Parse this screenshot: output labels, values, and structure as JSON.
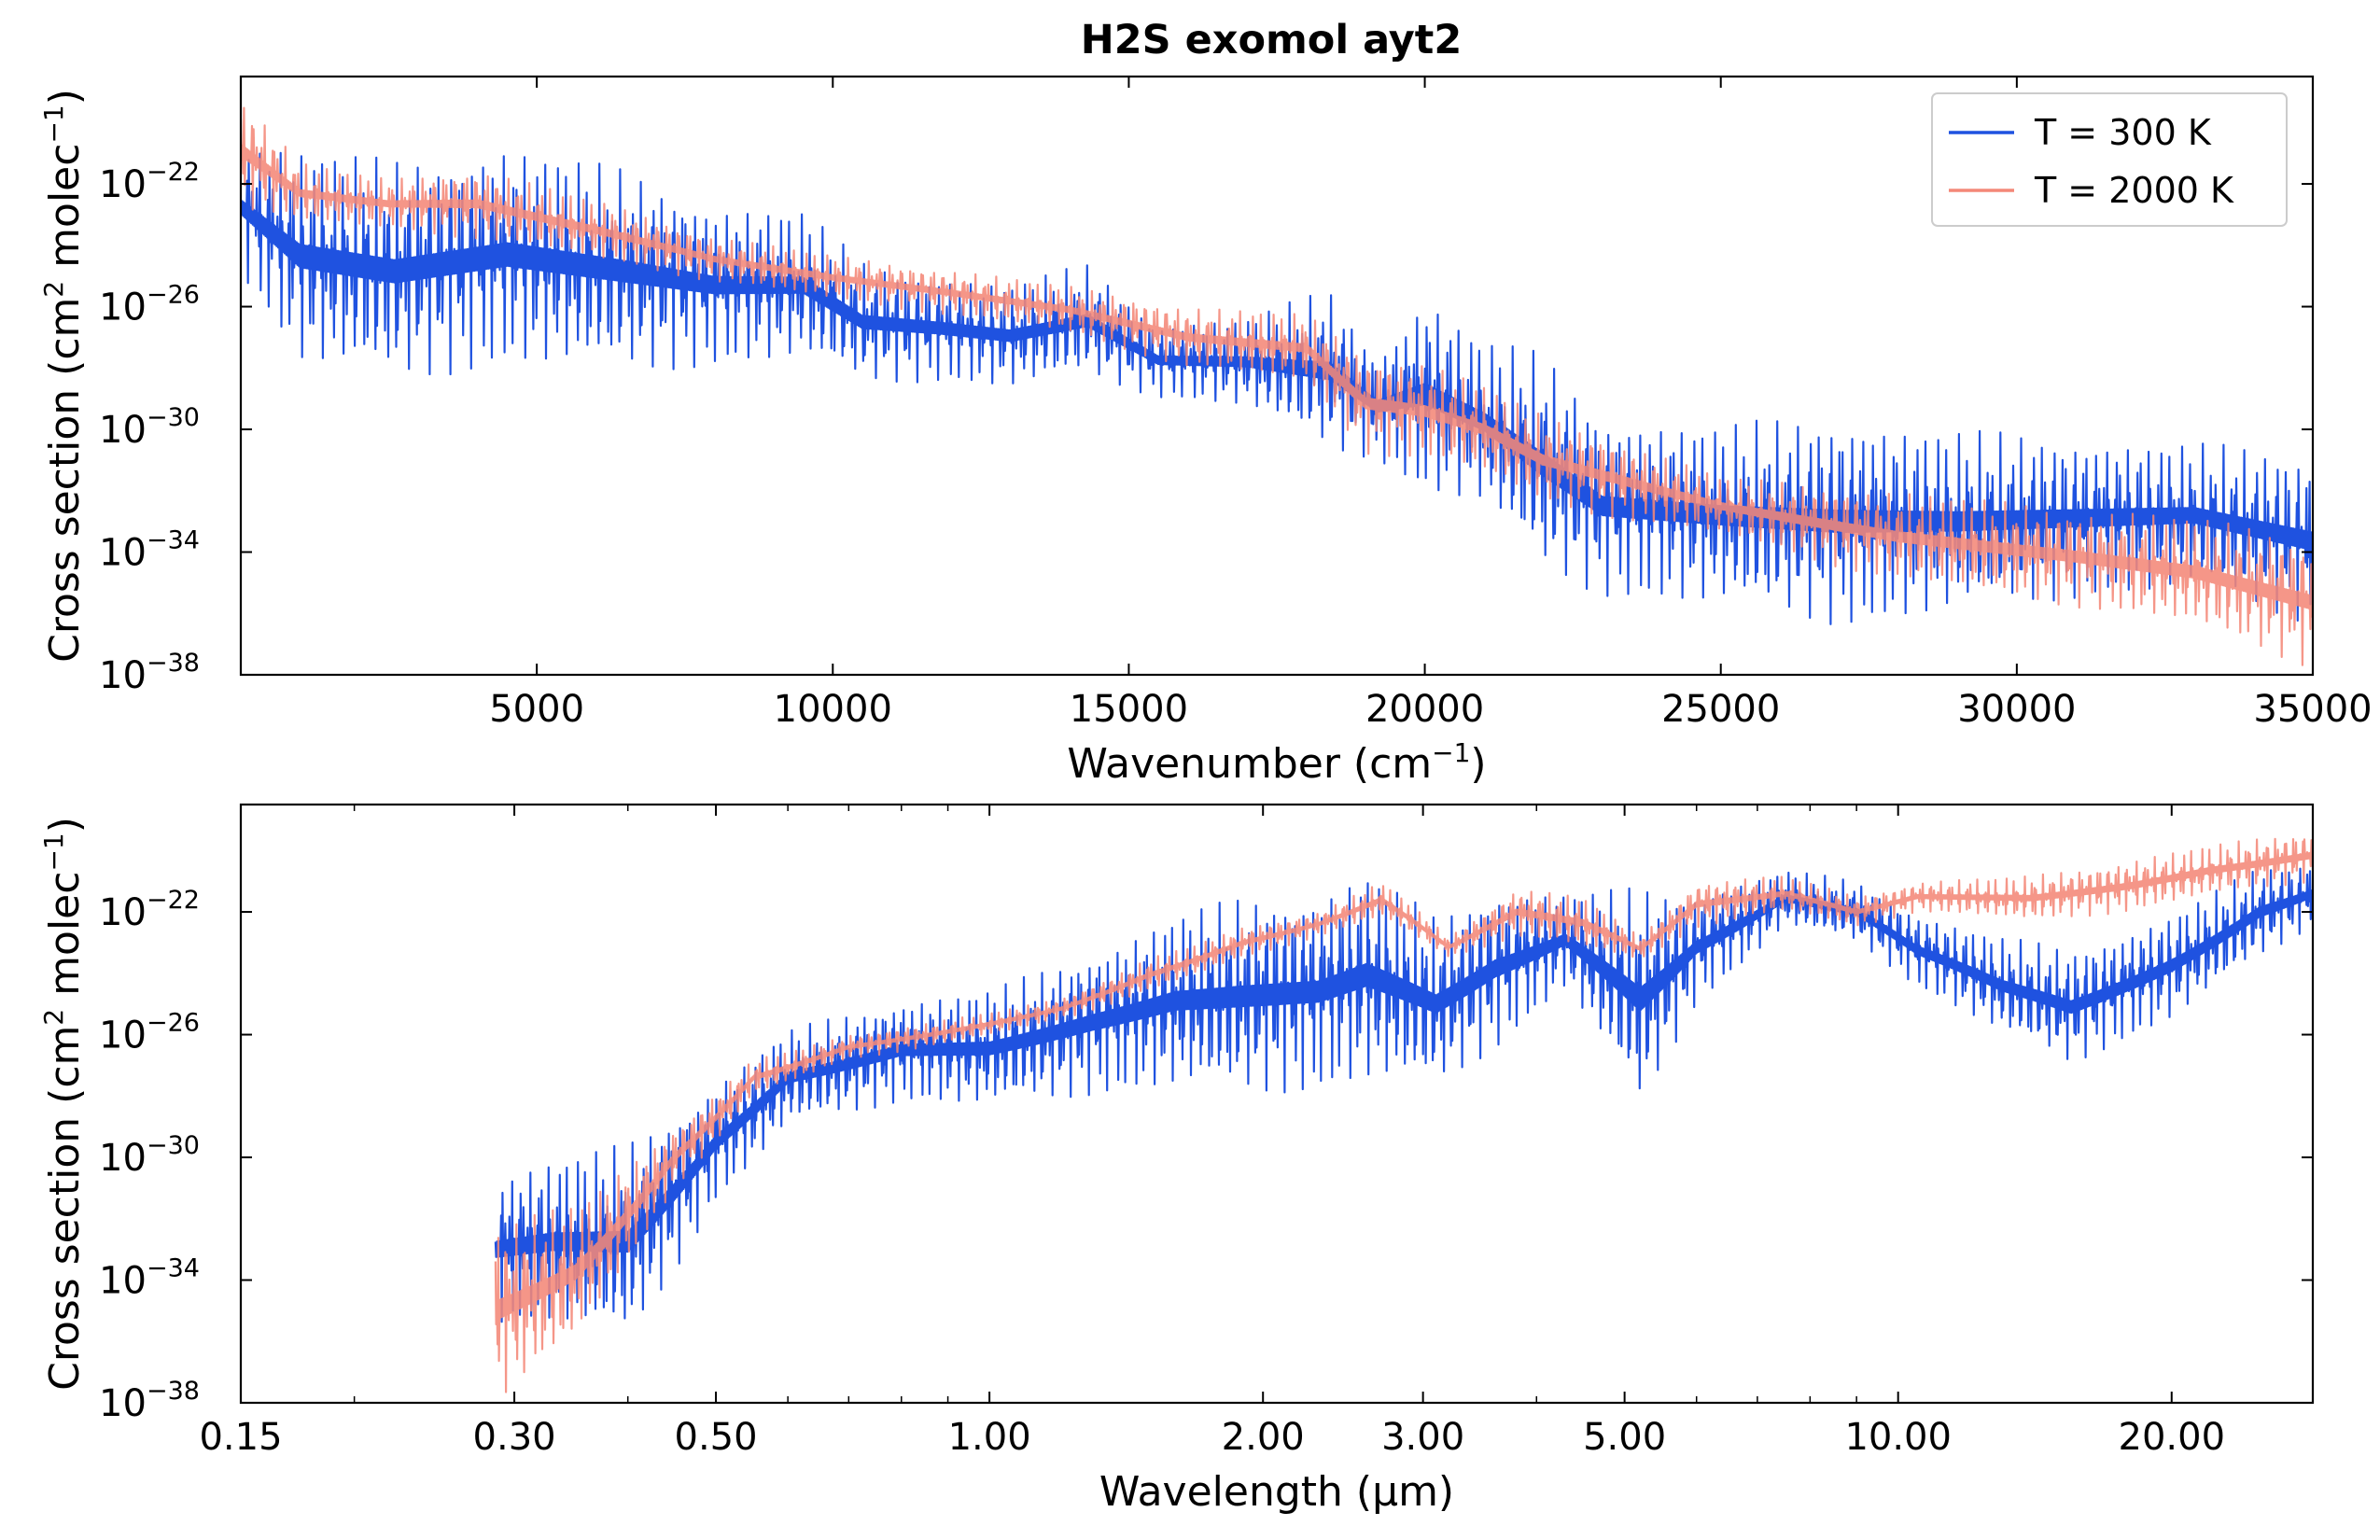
{
  "figure": {
    "title": "H2S exomol ayt2",
    "colors": {
      "t300": "#1f52e0",
      "t2000": "#f48878",
      "frame": "#000000"
    }
  },
  "chart_data": [
    {
      "type": "line",
      "xlabel": "Wavenumber (cm⁻¹)",
      "ylabel": "Cross section (cm² molec⁻¹)",
      "x_scale": "linear",
      "y_scale": "log",
      "xlim": [
        0,
        35000
      ],
      "ylim_exponent": [
        -38,
        -18.5
      ],
      "xticks": [
        5000,
        10000,
        15000,
        20000,
        25000,
        30000,
        35000
      ],
      "xtick_labels": [
        "5000",
        "10000",
        "15000",
        "20000",
        "25000",
        "30000",
        "35000"
      ],
      "yticks_exponent": [
        -38,
        -34,
        -30,
        -26,
        -22
      ],
      "legend": {
        "placement": "top-right",
        "entries": [
          "T = 300 K",
          "T = 2000 K"
        ]
      },
      "series": [
        {
          "name": "T = 300 K",
          "color": "#1f52e0",
          "x": [
            0,
            1000,
            2600,
            4500,
            6500,
            8000,
            9500,
            10500,
            11800,
            13000,
            14300,
            15500,
            17000,
            18400,
            19200,
            20000,
            21000,
            22000,
            23000,
            25000,
            27000,
            29000,
            31000,
            33000,
            35000
          ],
          "log10_upper": [
            -20.5,
            -20.7,
            -21.2,
            -20.6,
            -21.5,
            -22.6,
            -22.8,
            -24.5,
            -24.9,
            -25.2,
            -24.6,
            -26.5,
            -26.3,
            -25.4,
            -27.5,
            -25.5,
            -27.0,
            -27.5,
            -29.5,
            -29.8,
            -29.5,
            -30.0,
            -30.2,
            -30.4,
            -30.8
          ],
          "log10_lower": [
            -25.0,
            -28.0,
            -28.5,
            -28.0,
            -28.2,
            -28.0,
            -27.8,
            -28.5,
            -28.5,
            -28.7,
            -28.3,
            -29.0,
            -29.3,
            -30.8,
            -31.0,
            -32.2,
            -32.5,
            -34.8,
            -35.5,
            -35.8,
            -36.5,
            -36.0,
            -35.6,
            -35.2,
            -36.5
          ]
        },
        {
          "name": "T = 2000 K",
          "color": "#f48878",
          "x": [
            0,
            1000,
            2500,
            4000,
            6000,
            8000,
            10000,
            12000,
            14000,
            16000,
            18000,
            19000,
            20000,
            21000,
            22000,
            25000,
            28000,
            31000,
            33000,
            35000
          ],
          "log10_upper": [
            -19.0,
            -21.3,
            -21.8,
            -21.5,
            -22.5,
            -23.7,
            -24.3,
            -24.8,
            -25.3,
            -26.0,
            -26.2,
            -27.5,
            -27.8,
            -28.5,
            -29.5,
            -31.5,
            -32.0,
            -32.5,
            -32.8,
            -33.5
          ],
          "log10_lower": [
            -22.8,
            -23.3,
            -23.5,
            -23.8,
            -24.5,
            -25.2,
            -25.8,
            -26.3,
            -26.9,
            -28.0,
            -28.5,
            -30.8,
            -31.0,
            -31.5,
            -32.5,
            -33.5,
            -35.0,
            -35.8,
            -36.5,
            -37.8
          ]
        }
      ]
    },
    {
      "type": "line",
      "xlabel": "Wavelength (µm)",
      "ylabel": "Cross section (cm² molec⁻¹)",
      "x_scale": "log",
      "y_scale": "log",
      "xlim": [
        0.15,
        28.6
      ],
      "ylim_exponent": [
        -38,
        -18.5
      ],
      "xticks": [
        0.15,
        0.3,
        0.5,
        1.0,
        2.0,
        3.0,
        5.0,
        10.0,
        20.0
      ],
      "xtick_labels": [
        "0.15",
        "0.30",
        "0.50",
        "1.00",
        "2.00",
        "3.00",
        "5.00",
        "10.00",
        "20.00"
      ],
      "yticks_exponent": [
        -38,
        -34,
        -30,
        -26,
        -22
      ],
      "series": [
        {
          "name": "T = 300 K",
          "color": "#1f52e0",
          "x": [
            0.286,
            0.33,
            0.4,
            0.5,
            0.6,
            0.8,
            1.0,
            1.3,
            1.6,
            1.9,
            2.3,
            2.6,
            3.1,
            3.6,
            4.3,
            5.2,
            6.0,
            7.5,
            9.0,
            10.5,
            13.0,
            15.5,
            20.0,
            25.0,
            28.6
          ],
          "log10_upper": [
            -30.5,
            -30.0,
            -29.5,
            -27.5,
            -25.8,
            -24.8,
            -24.5,
            -23.2,
            -22.0,
            -21.5,
            -21.3,
            -20.5,
            -22.2,
            -21.2,
            -21.3,
            -21.2,
            -21.3,
            -20.6,
            -21.0,
            -22.0,
            -22.8,
            -23.2,
            -22.0,
            -20.5,
            -20.3
          ],
          "log10_lower": [
            -35.5,
            -35.5,
            -36.0,
            -31.5,
            -29.0,
            -28.2,
            -28.4,
            -28.0,
            -27.8,
            -28.0,
            -27.9,
            -27.6,
            -27.8,
            -26.5,
            -24.5,
            -28.5,
            -25.0,
            -22.5,
            -23.0,
            -24.5,
            -26.0,
            -27.0,
            -25.5,
            -23.5,
            -22.5
          ]
        },
        {
          "name": "T = 2000 K",
          "color": "#f48878",
          "x": [
            0.286,
            0.35,
            0.45,
            0.55,
            0.7,
            0.9,
            1.2,
            1.5,
            1.9,
            2.3,
            2.7,
            3.2,
            3.8,
            4.5,
            5.2,
            6.0,
            7.5,
            9.0,
            10.5,
            14.0,
            18.0,
            22.0,
            28.6
          ],
          "log10_upper": [
            -32.0,
            -31.5,
            -29.0,
            -26.8,
            -26.0,
            -25.5,
            -24.8,
            -23.5,
            -22.5,
            -22.0,
            -21.0,
            -22.8,
            -21.2,
            -21.5,
            -22.8,
            -21.0,
            -20.8,
            -21.5,
            -21.0,
            -20.8,
            -20.3,
            -19.8,
            -19.3
          ],
          "log10_lower": [
            -38.0,
            -36.0,
            -31.0,
            -28.0,
            -26.8,
            -26.3,
            -25.5,
            -24.6,
            -23.5,
            -22.8,
            -22.2,
            -23.5,
            -22.8,
            -23.2,
            -23.6,
            -22.5,
            -22.0,
            -22.5,
            -22.0,
            -22.3,
            -22.0,
            -21.5,
            -21.0
          ]
        }
      ]
    }
  ]
}
